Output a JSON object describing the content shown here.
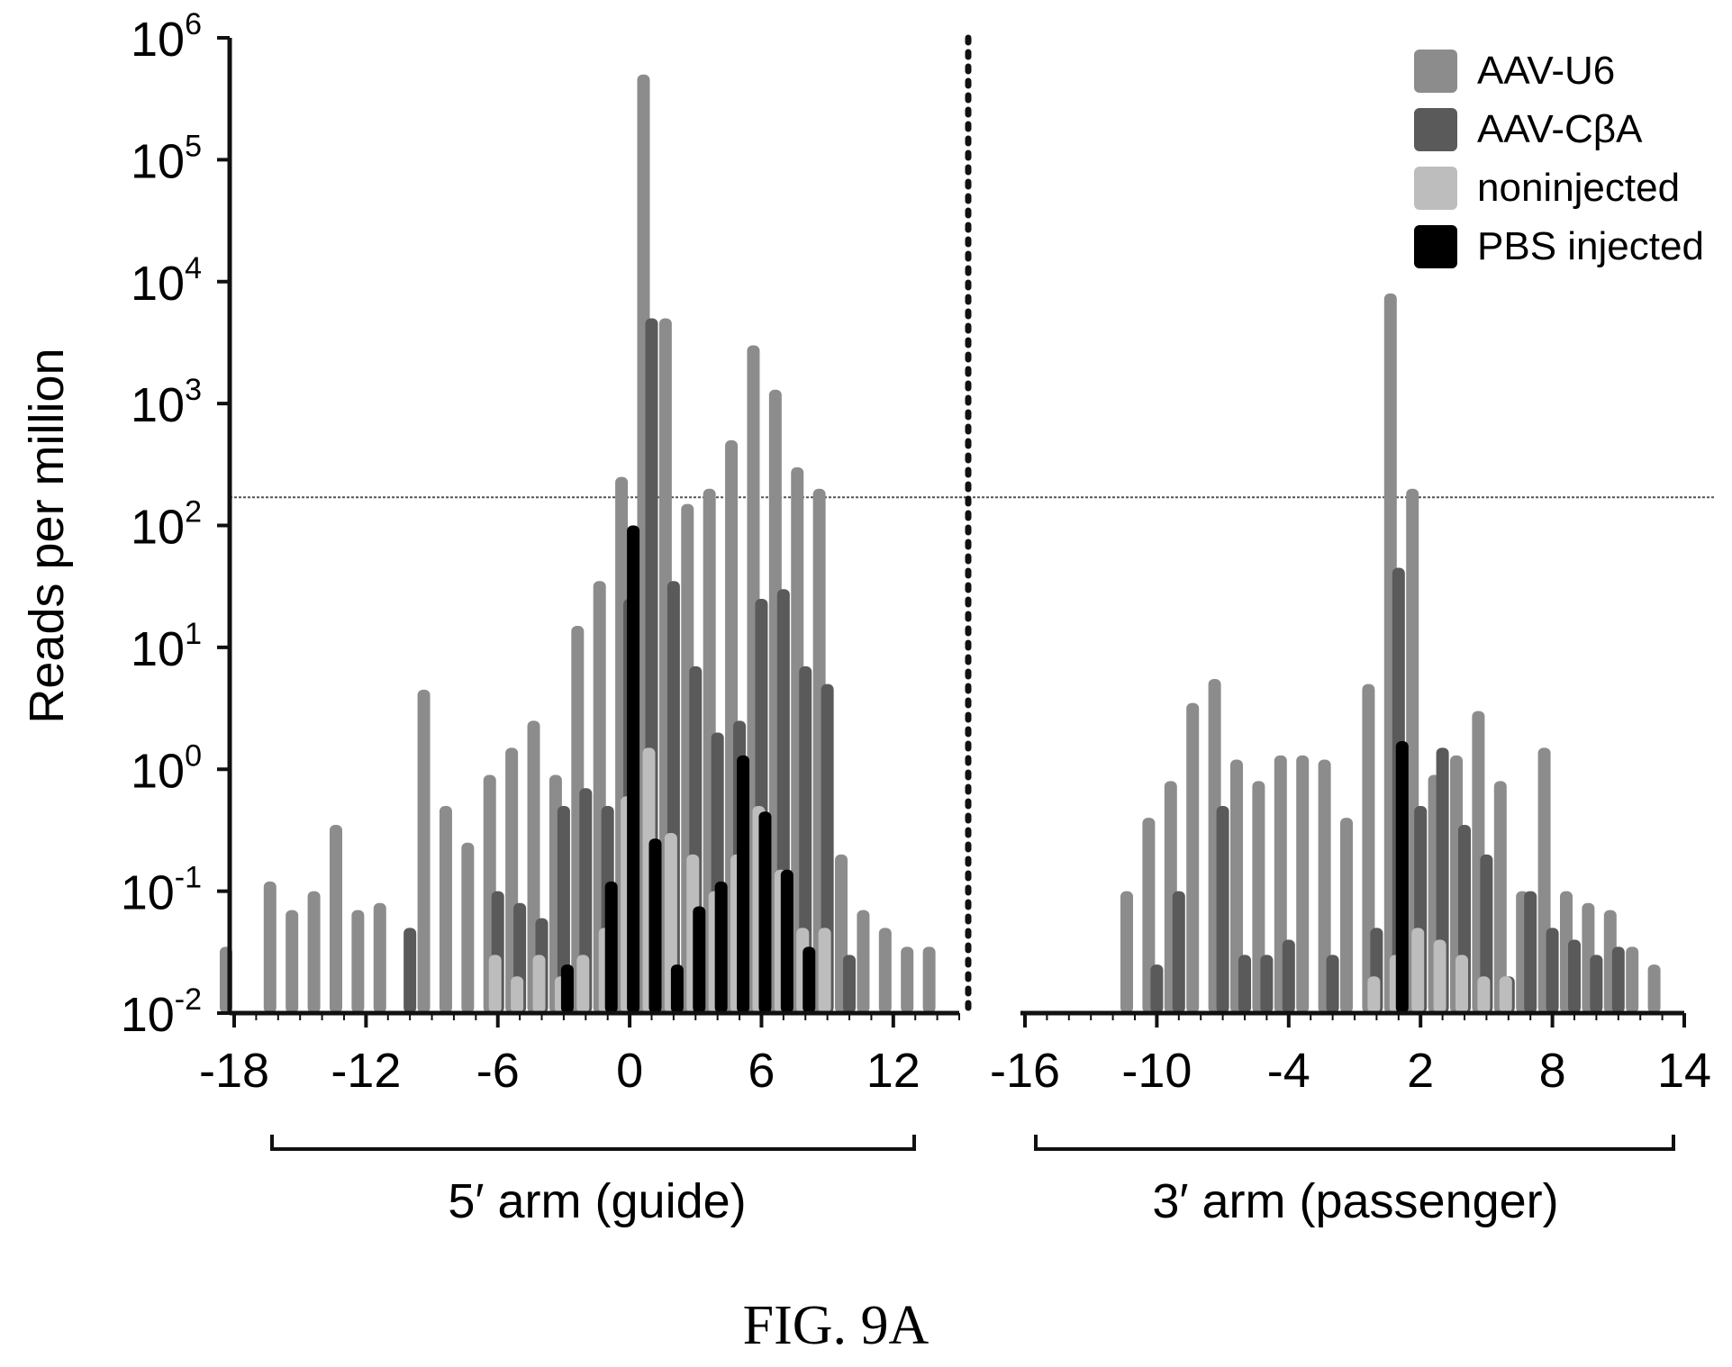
{
  "chart_data": {
    "type": "bar",
    "title": "",
    "caption": "FIG. 9A",
    "ylabel": "Reads per million",
    "yscale": "log",
    "ylim": [
      0.01,
      1000000
    ],
    "yticks": [
      {
        "value": 1000000,
        "base": "10",
        "exp": "6"
      },
      {
        "value": 100000,
        "base": "10",
        "exp": "5"
      },
      {
        "value": 10000,
        "base": "10",
        "exp": "4"
      },
      {
        "value": 1000,
        "base": "10",
        "exp": "3"
      },
      {
        "value": 100,
        "base": "10",
        "exp": "2"
      },
      {
        "value": 10,
        "base": "10",
        "exp": "1"
      },
      {
        "value": 1,
        "base": "10",
        "exp": "0"
      },
      {
        "value": 0.1,
        "base": "10",
        "exp": "-1"
      },
      {
        "value": 0.01,
        "base": "10",
        "exp": "-2"
      }
    ],
    "threshold": 170,
    "legend_position": "top-right",
    "legend": [
      {
        "name": "AAV-U6",
        "color": "#8c8c8c"
      },
      {
        "name": "AAV-CβA",
        "color": "#5a5a5a"
      },
      {
        "name": "noninjected",
        "color": "#bdbdbd"
      },
      {
        "name": "PBS injected",
        "color": "#000000"
      }
    ],
    "panels": [
      {
        "name": "5′ arm (guide)",
        "xlim": [
          -18,
          15
        ],
        "xticks": [
          "-18",
          "-12",
          "-6",
          "0",
          "6",
          "12"
        ],
        "series": [
          {
            "name": "AAV-U6",
            "color": "#8c8c8c",
            "x": [
              -18,
              -16,
              -15,
              -14,
              -13,
              -12,
              -11,
              -9,
              -8,
              -7,
              -6,
              -5,
              -4,
              -3,
              -2,
              -1,
              0,
              1,
              2,
              3,
              4,
              5,
              6,
              7,
              8,
              9,
              10,
              11,
              12,
              13,
              14
            ],
            "values": [
              0.035,
              0.12,
              0.07,
              0.1,
              0.35,
              0.07,
              0.08,
              4.5,
              0.5,
              0.25,
              0.9,
              1.5,
              2.5,
              0.9,
              15,
              35,
              250,
              500000,
              5000,
              150,
              200,
              500,
              3000,
              1300,
              300,
              200,
              0.2,
              0.07,
              0.05,
              0.035,
              0.035
            ]
          },
          {
            "name": "AAV-CβA",
            "color": "#5a5a5a",
            "x": [
              -10,
              -6,
              -5,
              -4,
              -3,
              -2,
              -1,
              0,
              1,
              2,
              3,
              4,
              5,
              6,
              7,
              8,
              9,
              10
            ],
            "values": [
              0.05,
              0.1,
              0.08,
              0.06,
              0.5,
              0.7,
              0.5,
              25,
              5000,
              35,
              7,
              2,
              2.5,
              25,
              30,
              7,
              5,
              0.03
            ]
          },
          {
            "name": "noninjected",
            "color": "#bdbdbd",
            "x": [
              -6,
              -5,
              -4,
              -3,
              -2,
              -1,
              0,
              1,
              2,
              3,
              4,
              5,
              6,
              7,
              8,
              9
            ],
            "values": [
              0.03,
              0.02,
              0.03,
              0.02,
              0.03,
              0.05,
              0.6,
              1.5,
              0.3,
              0.2,
              0.1,
              0.2,
              0.5,
              0.15,
              0.05,
              0.05
            ]
          },
          {
            "name": "PBS injected",
            "color": "#000000",
            "x": [
              -3,
              -1,
              0,
              1,
              2,
              3,
              4,
              5,
              6,
              7,
              8
            ],
            "values": [
              0.025,
              0.12,
              100,
              0.27,
              0.025,
              0.075,
              0.12,
              1.3,
              0.45,
              0.15,
              0.035
            ]
          }
        ]
      },
      {
        "name": "3′ arm (passenger)",
        "xlim": [
          -16,
          14
        ],
        "xticks": [
          "-16",
          "-10",
          "-4",
          "2",
          "8",
          "14"
        ],
        "series": [
          {
            "name": "AAV-U6",
            "color": "#8c8c8c",
            "x": [
              -11,
              -10,
              -9,
              -8,
              -7,
              -6,
              -5,
              -4,
              -3,
              -2,
              -1,
              0,
              1,
              2,
              3,
              4,
              5,
              6,
              7,
              8,
              9,
              10,
              11,
              12,
              13
            ],
            "values": [
              0.1,
              0.4,
              0.8,
              3.5,
              5.5,
              1.2,
              0.8,
              1.3,
              1.3,
              1.2,
              0.4,
              5,
              8000,
              200,
              0.9,
              1.3,
              3,
              0.8,
              0.1,
              1.5,
              0.1,
              0.08,
              0.07,
              0.035,
              0.025
            ]
          },
          {
            "name": "AAV-CβA",
            "color": "#5a5a5a",
            "x": [
              -10,
              -9,
              -7,
              -6,
              -5,
              -4,
              -2,
              0,
              1,
              2,
              3,
              4,
              5,
              6,
              7,
              8,
              9,
              10,
              11
            ],
            "values": [
              0.025,
              0.1,
              0.5,
              0.03,
              0.03,
              0.04,
              0.03,
              0.05,
              45,
              0.5,
              1.5,
              0.35,
              0.2,
              0.02,
              0.1,
              0.05,
              0.04,
              0.03,
              0.035
            ]
          },
          {
            "name": "noninjected",
            "color": "#bdbdbd",
            "x": [
              0,
              1,
              2,
              3,
              4,
              5,
              6
            ],
            "values": [
              0.02,
              0.03,
              0.05,
              0.04,
              0.03,
              0.02,
              0.02
            ]
          },
          {
            "name": "PBS injected",
            "color": "#000000",
            "x": [
              1
            ],
            "values": [
              1.7
            ]
          }
        ]
      }
    ]
  }
}
